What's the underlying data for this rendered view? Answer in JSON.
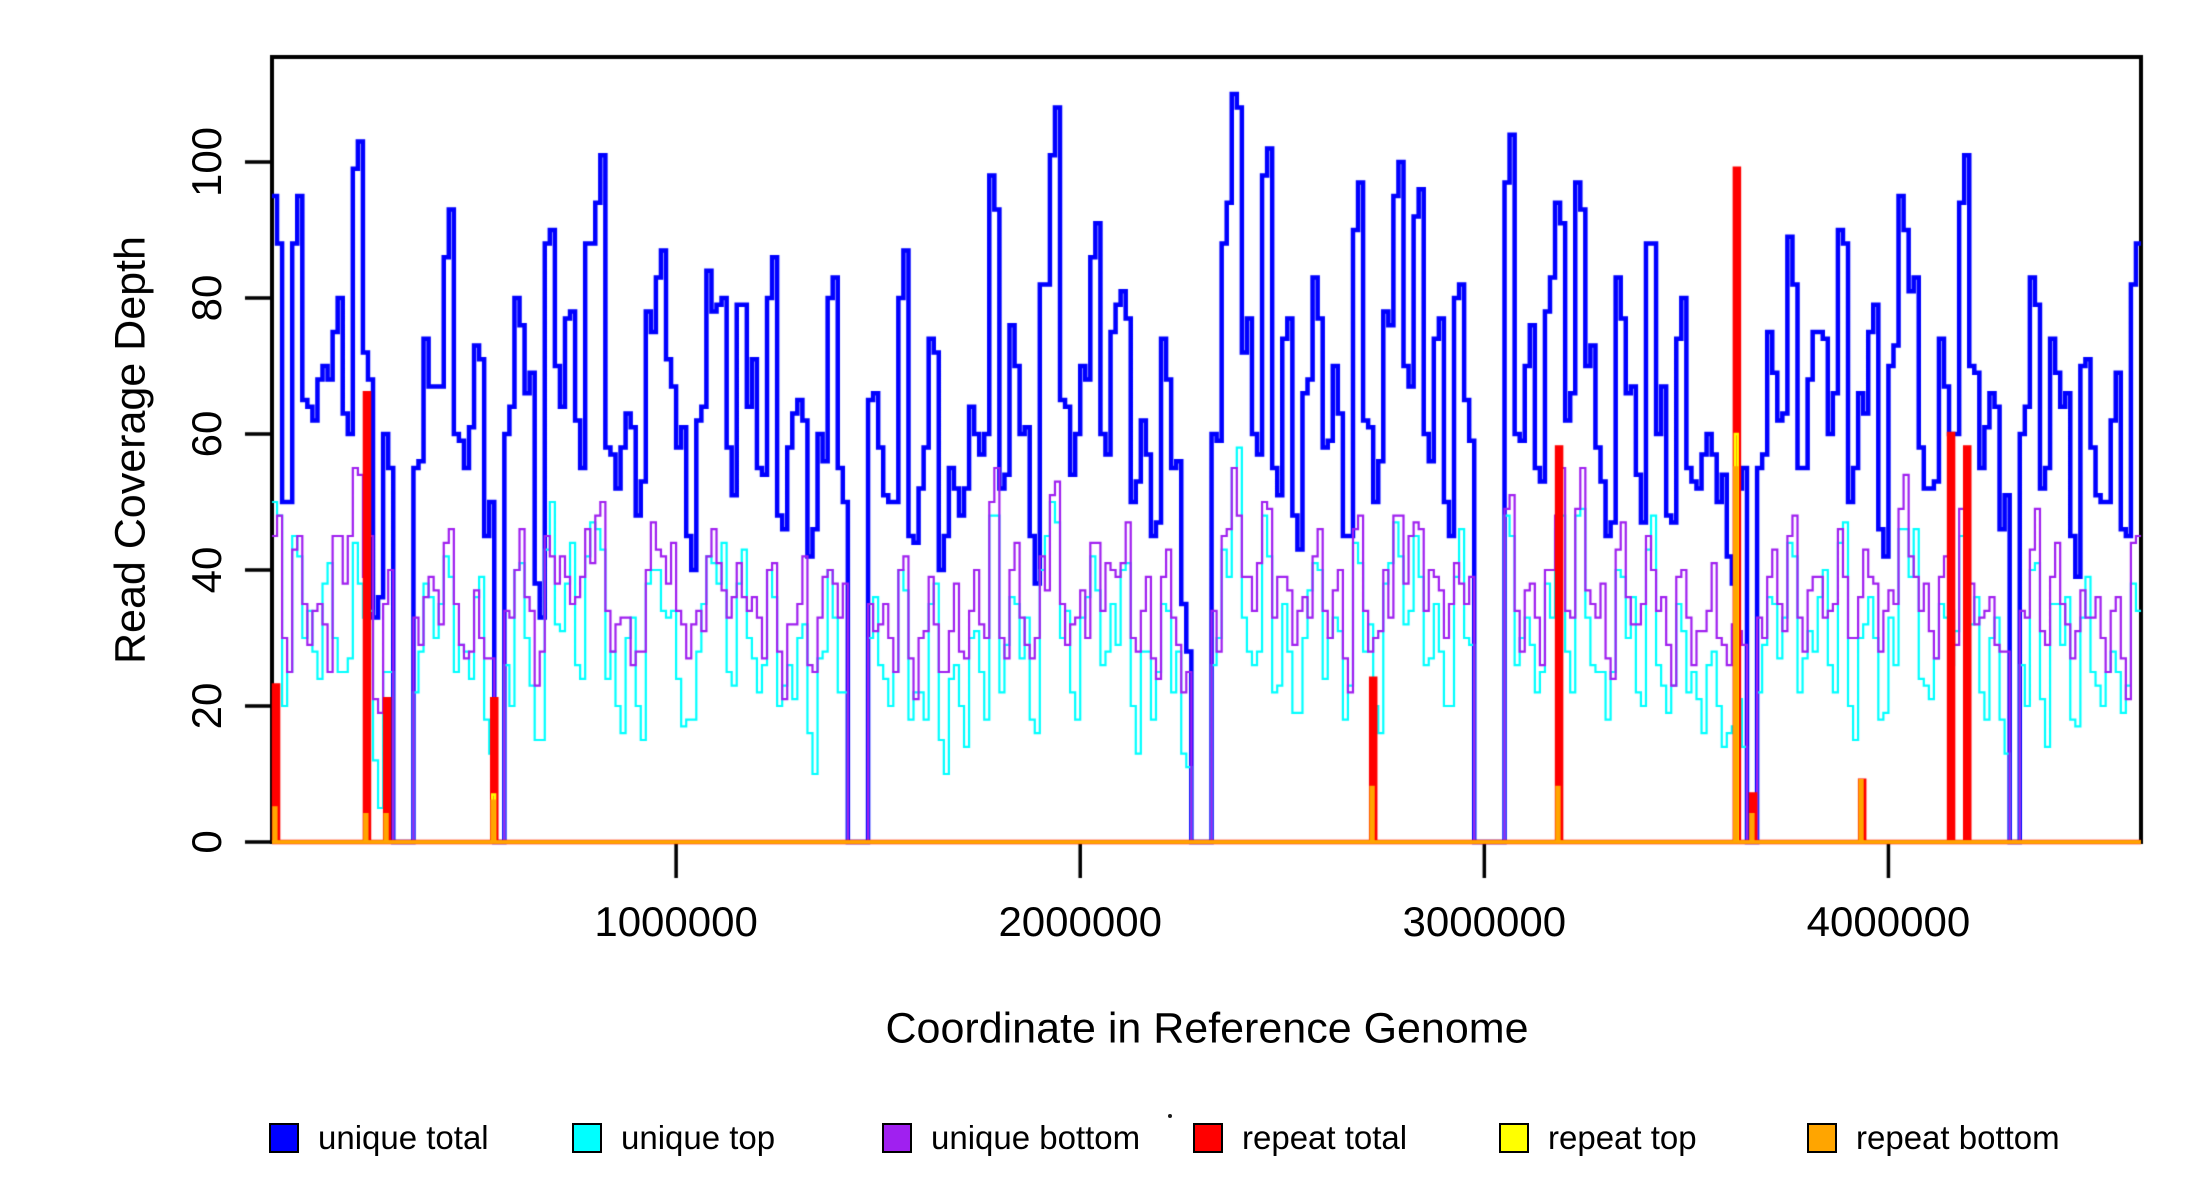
{
  "figure": {
    "background": "#ffffff",
    "text_color": "#000000"
  },
  "axes": {
    "x_label": "Coordinate in Reference Genome",
    "y_label": "Read Coverage Depth",
    "x_tick_labels": [
      "1000000",
      "2000000",
      "3000000",
      "4000000"
    ],
    "y_tick_labels": [
      "0",
      "20",
      "40",
      "60",
      "80",
      "100"
    ]
  },
  "legend": {
    "items": [
      {
        "label": "unique total",
        "color": "#0000FF"
      },
      {
        "label": "unique top",
        "color": "#00FFFF"
      },
      {
        "label": "unique bottom",
        "color": "#A020F0"
      },
      {
        "label": "repeat total",
        "color": "#FF0000"
      },
      {
        "label": "repeat top",
        "color": "#FFFF00"
      },
      {
        "label": "repeat bottom",
        "color": "#FFA500"
      }
    ]
  },
  "artifacts": {
    "stray_dot": "."
  },
  "chart_data": {
    "type": "line",
    "subtype": "step-coverage",
    "title": "",
    "xlabel": "Coordinate in Reference Genome",
    "ylabel": "Read Coverage Depth",
    "xlim": [
      0,
      4625000
    ],
    "ylim": [
      0,
      115
    ],
    "x_tick_values": [
      1000000,
      2000000,
      3000000,
      4000000
    ],
    "y_tick_values": [
      0,
      20,
      40,
      60,
      80,
      100
    ],
    "grid": false,
    "legend_position": "bottom",
    "x_start": 0,
    "x_step": 25000,
    "series": [
      {
        "name": "unique total",
        "color": "#0000FF",
        "line_width": 4.5,
        "kind": "step",
        "values": [
          95,
          50,
          88,
          65,
          62,
          70,
          75,
          63,
          99,
          72,
          33,
          60,
          0,
          0,
          55,
          74,
          67,
          86,
          60,
          55,
          73,
          45,
          0,
          60,
          80,
          66,
          38,
          88,
          70,
          77,
          62,
          88,
          94,
          58,
          52,
          63,
          48,
          78,
          83,
          71,
          58,
          45,
          62,
          84,
          79,
          58,
          79,
          64,
          55,
          80,
          48,
          58,
          65,
          42,
          60,
          80,
          55,
          0,
          0,
          65,
          58,
          50,
          80,
          45,
          52,
          74,
          40,
          55,
          48,
          64,
          57,
          98,
          52,
          76,
          60,
          45,
          82,
          101,
          65,
          54,
          70,
          86,
          60,
          75,
          81,
          50,
          62,
          45,
          74,
          55,
          35,
          0,
          0,
          60,
          88,
          110,
          72,
          60,
          98,
          55,
          74,
          48,
          66,
          83,
          58,
          70,
          45,
          90,
          62,
          50,
          78,
          95,
          70,
          92,
          60,
          74,
          50,
          80,
          65,
          0,
          0,
          0,
          97,
          60,
          70,
          55,
          78,
          94,
          62,
          97,
          70,
          58,
          45,
          83,
          66,
          54,
          88,
          60,
          48,
          74,
          55,
          52,
          60,
          50,
          42,
          52,
          0,
          55,
          75,
          62,
          89,
          55,
          68,
          75,
          60,
          90,
          50,
          66,
          75,
          46,
          70,
          95,
          81,
          58,
          52,
          74,
          60,
          94,
          70,
          55,
          66,
          46,
          0,
          60,
          83,
          52,
          74,
          64,
          45,
          70,
          58,
          50,
          62,
          46,
          82
        ]
      },
      {
        "name": "unique top",
        "color": "#00FFFF",
        "line_width": 2.2,
        "kind": "step",
        "values": [
          50,
          20,
          45,
          30,
          28,
          38,
          30,
          25,
          44,
          33,
          12,
          25,
          0,
          0,
          22,
          38,
          30,
          42,
          25,
          28,
          36,
          18,
          0,
          26,
          40,
          30,
          15,
          43,
          32,
          38,
          26,
          42,
          46,
          24,
          20,
          30,
          20,
          38,
          40,
          33,
          24,
          18,
          28,
          42,
          38,
          25,
          38,
          30,
          22,
          40,
          20,
          26,
          30,
          16,
          27,
          40,
          22,
          0,
          0,
          30,
          26,
          20,
          40,
          18,
          22,
          35,
          15,
          24,
          20,
          30,
          25,
          48,
          22,
          36,
          27,
          18,
          40,
          50,
          30,
          22,
          33,
          42,
          26,
          35,
          40,
          20,
          28,
          18,
          35,
          22,
          13,
          0,
          0,
          26,
          43,
          55,
          33,
          26,
          48,
          22,
          35,
          19,
          30,
          41,
          24,
          33,
          18,
          44,
          28,
          20,
          38,
          47,
          32,
          45,
          26,
          35,
          20,
          39,
          30,
          0,
          0,
          0,
          48,
          26,
          33,
          22,
          38,
          46,
          28,
          48,
          33,
          25,
          18,
          40,
          30,
          22,
          43,
          26,
          19,
          35,
          22,
          21,
          26,
          20,
          16,
          21,
          0,
          22,
          36,
          27,
          44,
          22,
          31,
          36,
          26,
          44,
          20,
          30,
          36,
          18,
          33,
          46,
          39,
          24,
          21,
          35,
          26,
          45,
          32,
          22,
          30,
          18,
          0,
          26,
          40,
          21,
          35,
          29,
          18,
          33,
          25,
          20,
          28,
          19,
          38
        ]
      },
      {
        "name": "unique bottom",
        "color": "#A020F0",
        "line_width": 2.2,
        "kind": "step",
        "values": [
          45,
          30,
          43,
          35,
          34,
          32,
          45,
          38,
          55,
          39,
          21,
          35,
          0,
          0,
          33,
          36,
          37,
          44,
          35,
          27,
          37,
          27,
          0,
          34,
          40,
          36,
          23,
          45,
          38,
          39,
          36,
          46,
          48,
          34,
          32,
          33,
          28,
          40,
          43,
          38,
          34,
          27,
          34,
          42,
          41,
          33,
          41,
          34,
          33,
          40,
          28,
          32,
          35,
          26,
          33,
          40,
          33,
          0,
          0,
          35,
          32,
          30,
          40,
          27,
          30,
          39,
          25,
          31,
          28,
          34,
          32,
          50,
          30,
          40,
          33,
          27,
          42,
          51,
          35,
          32,
          37,
          44,
          34,
          40,
          41,
          30,
          34,
          27,
          39,
          33,
          22,
          0,
          0,
          34,
          45,
          55,
          39,
          34,
          50,
          33,
          39,
          29,
          36,
          42,
          34,
          37,
          27,
          46,
          34,
          30,
          40,
          48,
          38,
          47,
          34,
          39,
          30,
          41,
          35,
          0,
          0,
          0,
          49,
          34,
          37,
          33,
          40,
          48,
          34,
          49,
          37,
          33,
          27,
          43,
          36,
          32,
          45,
          34,
          29,
          39,
          33,
          31,
          34,
          30,
          26,
          31,
          0,
          33,
          39,
          35,
          45,
          33,
          37,
          39,
          34,
          46,
          30,
          36,
          39,
          28,
          37,
          49,
          42,
          34,
          31,
          39,
          34,
          49,
          38,
          33,
          36,
          28,
          0,
          34,
          43,
          31,
          39,
          35,
          27,
          37,
          33,
          30,
          34,
          27,
          44
        ]
      },
      {
        "name": "repeat total",
        "color": "#FF0000",
        "line_width": 4.5,
        "kind": "spikes",
        "baseline": 0,
        "spike_width": 10000,
        "spikes": [
          [
            5000,
            23
          ],
          [
            230000,
            66
          ],
          [
            280000,
            21
          ],
          [
            545000,
            21
          ],
          [
            2720000,
            24
          ],
          [
            3180000,
            58
          ],
          [
            3620000,
            99
          ],
          [
            3660000,
            7
          ],
          [
            3930000,
            9
          ],
          [
            4150000,
            60
          ],
          [
            4190000,
            58
          ]
        ]
      },
      {
        "name": "repeat top",
        "color": "#FFFF00",
        "line_width": 2.5,
        "kind": "spikes",
        "baseline": 0,
        "spike_width": 7000,
        "spikes": [
          [
            545000,
            7
          ],
          [
            3620000,
            60
          ]
        ]
      },
      {
        "name": "repeat bottom",
        "color": "#FFA500",
        "line_width": 3.5,
        "kind": "spikes",
        "baseline": 0,
        "spike_width": 4500,
        "spikes": [
          [
            5000,
            5
          ],
          [
            230000,
            4
          ],
          [
            280000,
            4
          ],
          [
            545000,
            6
          ],
          [
            2720000,
            8
          ],
          [
            3180000,
            8
          ],
          [
            3620000,
            55
          ],
          [
            3660000,
            4
          ],
          [
            3930000,
            9
          ]
        ]
      }
    ]
  }
}
